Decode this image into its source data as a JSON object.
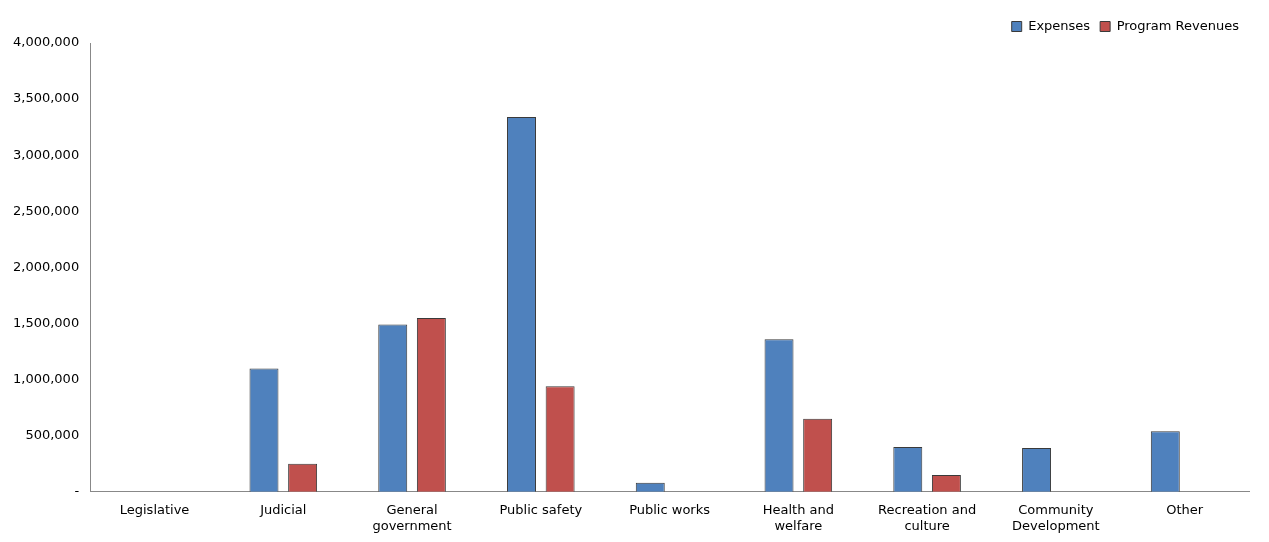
{
  "chart_data": {
    "type": "bar",
    "categories": [
      "Legislative",
      "Judicial",
      "General government",
      "Public safety",
      "Public works",
      "Health and welfare",
      "Recreation and culture",
      "Community Development",
      "Other"
    ],
    "series": [
      {
        "name": "Expenses",
        "color": "#4f81bd",
        "values": [
          0,
          1100000,
          1490000,
          3340000,
          80000,
          1360000,
          400000,
          390000,
          540000
        ]
      },
      {
        "name": "Program Revenues",
        "color": "#c0504d",
        "values": [
          0,
          250000,
          1550000,
          940000,
          0,
          650000,
          150000,
          0,
          0
        ]
      }
    ],
    "ylim": [
      0,
      4000000
    ],
    "yticks": [
      {
        "value": 0,
        "label": "-"
      },
      {
        "value": 500000,
        "label": "500,000"
      },
      {
        "value": 1000000,
        "label": "1,000,000"
      },
      {
        "value": 1500000,
        "label": "1,500,000"
      },
      {
        "value": 2000000,
        "label": "2,000,000"
      },
      {
        "value": 2500000,
        "label": "2,500,000"
      },
      {
        "value": 3000000,
        "label": "3,000,000"
      },
      {
        "value": 3500000,
        "label": "3,500,000"
      },
      {
        "value": 4000000,
        "label": "4,000,000"
      }
    ],
    "grid": false,
    "legend": "top right"
  }
}
